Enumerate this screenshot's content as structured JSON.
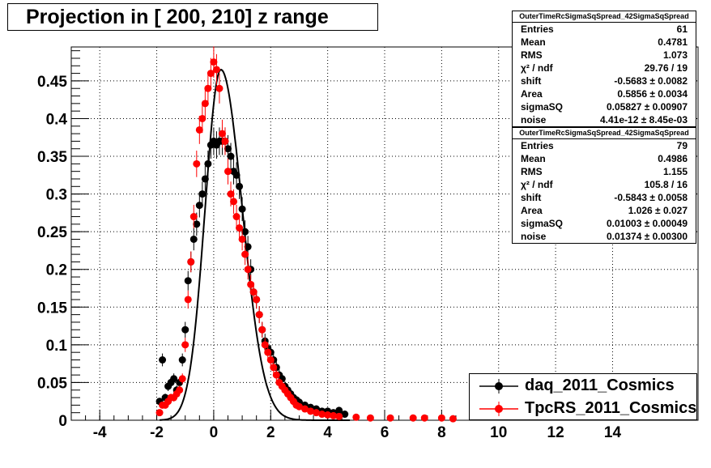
{
  "chart_data": {
    "type": "scatter",
    "title": "Projection in [ 200, 210] z range",
    "xlim": [
      -5,
      17
    ],
    "ylim": [
      0,
      0.495
    ],
    "x_ticks": [
      "-4",
      "-2",
      "0",
      "2",
      "4",
      "6",
      "8",
      "10",
      "12",
      "14"
    ],
    "x_tick_values": [
      -4,
      -2,
      0,
      2,
      4,
      6,
      8,
      10,
      12,
      14
    ],
    "y_ticks": [
      "0",
      "0.05",
      "0.1",
      "0.15",
      "0.2",
      "0.25",
      "0.3",
      "0.35",
      "0.4",
      "0.45"
    ],
    "y_tick_values": [
      0,
      0.05,
      0.1,
      0.15,
      0.2,
      0.25,
      0.3,
      0.35,
      0.4,
      0.45
    ],
    "grid": true,
    "legend_position": "bottom-right",
    "series": [
      {
        "name": "daq_2011_Cosmics",
        "color": "#000000",
        "x": [
          -1.9,
          -1.8,
          -1.7,
          -1.6,
          -1.5,
          -1.4,
          -1.3,
          -1.2,
          -1.1,
          -1.0,
          -0.9,
          -0.8,
          -0.7,
          -0.6,
          -0.5,
          -0.4,
          -0.3,
          -0.2,
          -0.1,
          0.0,
          0.1,
          0.2,
          0.3,
          0.4,
          0.5,
          0.6,
          0.7,
          0.8,
          0.9,
          1.0,
          1.1,
          1.2,
          1.3,
          1.4,
          1.5,
          1.6,
          1.7,
          1.8,
          1.9,
          2.0,
          2.1,
          2.2,
          2.3,
          2.4,
          2.5,
          2.6,
          2.7,
          2.8,
          2.9,
          3.0,
          3.2,
          3.4,
          3.6,
          3.8,
          4.0,
          4.2,
          4.4,
          4.6
        ],
        "y": [
          0.025,
          0.08,
          0.03,
          0.045,
          0.05,
          0.055,
          0.04,
          0.05,
          0.08,
          0.12,
          0.185,
          0.21,
          0.24,
          0.26,
          0.285,
          0.3,
          0.32,
          0.34,
          0.365,
          0.37,
          0.365,
          0.37,
          0.37,
          0.37,
          0.36,
          0.35,
          0.33,
          0.325,
          0.31,
          0.28,
          0.25,
          0.23,
          0.2,
          0.17,
          0.16,
          0.14,
          0.12,
          0.105,
          0.095,
          0.09,
          0.08,
          0.07,
          0.06,
          0.055,
          0.045,
          0.04,
          0.035,
          0.03,
          0.027,
          0.024,
          0.02,
          0.017,
          0.015,
          0.012,
          0.012,
          0.01,
          0.013,
          0.008
        ]
      },
      {
        "name": "TpcRS_2011_Cosmics",
        "color": "#ff0000",
        "x": [
          -1.9,
          -1.8,
          -1.7,
          -1.6,
          -1.5,
          -1.4,
          -1.3,
          -1.2,
          -1.1,
          -1.0,
          -0.9,
          -0.8,
          -0.7,
          -0.6,
          -0.5,
          -0.4,
          -0.3,
          -0.2,
          -0.1,
          0.0,
          0.1,
          0.2,
          0.3,
          0.4,
          0.5,
          0.6,
          0.7,
          0.8,
          0.9,
          1.0,
          1.1,
          1.2,
          1.3,
          1.4,
          1.5,
          1.6,
          1.7,
          1.8,
          1.9,
          2.0,
          2.1,
          2.2,
          2.3,
          2.4,
          2.5,
          2.6,
          2.7,
          2.8,
          2.9,
          3.0,
          3.2,
          3.4,
          3.6,
          3.8,
          4.0,
          4.2,
          4.4,
          5.0,
          5.5,
          6.2,
          7.0,
          7.4,
          8.0,
          8.4
        ],
        "y": [
          0.01,
          0.02,
          0.02,
          0.025,
          0.03,
          0.03,
          0.035,
          0.04,
          0.055,
          0.1,
          0.16,
          0.21,
          0.27,
          0.34,
          0.385,
          0.4,
          0.42,
          0.44,
          0.46,
          0.475,
          0.465,
          0.44,
          0.38,
          0.37,
          0.33,
          0.3,
          0.29,
          0.27,
          0.255,
          0.24,
          0.22,
          0.2,
          0.18,
          0.17,
          0.16,
          0.14,
          0.12,
          0.1,
          0.09,
          0.08,
          0.07,
          0.06,
          0.05,
          0.045,
          0.04,
          0.035,
          0.03,
          0.025,
          0.02,
          0.018,
          0.015,
          0.012,
          0.01,
          0.008,
          0.007,
          0.006,
          0.005,
          0.004,
          0.003,
          0.003,
          0.003,
          0.003,
          0.003,
          0.002
        ]
      }
    ]
  },
  "stats": [
    {
      "header": "OuterTimeRcSigmaSqSpread_42SigmaSqSpread",
      "rows": [
        {
          "label": "Entries",
          "value": "61"
        },
        {
          "label": "Mean",
          "value": "0.4781"
        },
        {
          "label": "RMS",
          "value": "1.073"
        },
        {
          "label": "χ² / ndf",
          "value": "29.76 / 19"
        },
        {
          "label": "shift",
          "value": "-0.5683 ± 0.0082"
        },
        {
          "label": "Area",
          "value": "0.5856 ± 0.0034"
        },
        {
          "label": "sigmaSQ",
          "value": "0.05827 ± 0.00907"
        },
        {
          "label": "noise",
          "value": "4.41e-12 ± 8.45e-03"
        }
      ]
    },
    {
      "header": "OuterTimeRcSigmaSqSpread_42SigmaSqSpread",
      "rows": [
        {
          "label": "Entries",
          "value": "79"
        },
        {
          "label": "Mean",
          "value": "0.4986"
        },
        {
          "label": "RMS",
          "value": "1.155"
        },
        {
          "label": "χ² / ndf",
          "value": "105.8 / 16"
        },
        {
          "label": "shift",
          "value": "-0.5843 ± 0.0058"
        },
        {
          "label": "Area",
          "value": "1.026 ± 0.027"
        },
        {
          "label": "sigmaSQ",
          "value": "0.01003 ± 0.00049"
        },
        {
          "label": "noise",
          "value": "0.01374 ± 0.00300"
        }
      ]
    }
  ]
}
